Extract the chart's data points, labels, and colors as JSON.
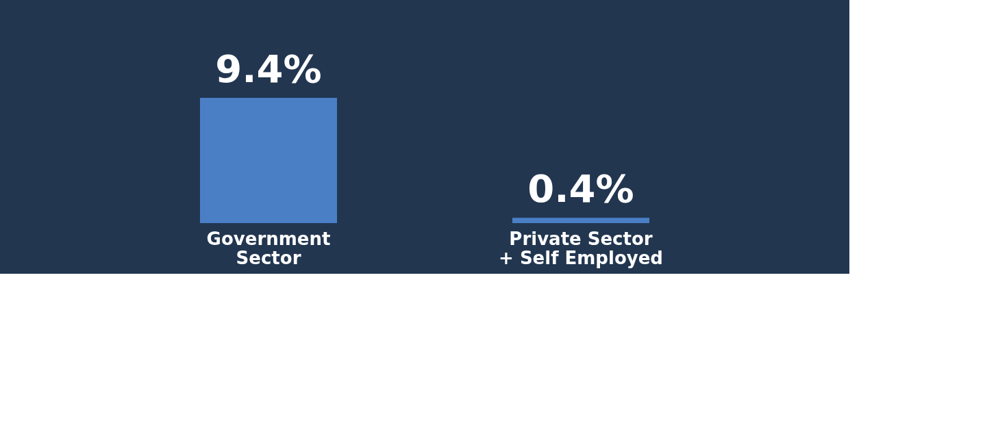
{
  "chart_data": {
    "type": "bar",
    "categories": [
      "Government Sector",
      "Private Sector + Self Employed"
    ],
    "values": [
      9.4,
      0.4
    ],
    "color": "#4a7fc6",
    "value_labels": [
      "9.4%",
      "0.4%"
    ],
    "grid": false
  }
}
